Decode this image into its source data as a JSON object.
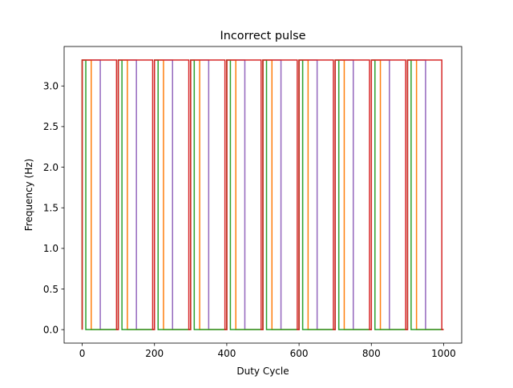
{
  "chart_data": {
    "type": "line",
    "title": "Incorrect pulse",
    "xlabel": "Duty Cycle",
    "ylabel": "Frequency (Hz)",
    "xlim": [
      -50,
      1050
    ],
    "ylim": [
      -0.166,
      3.486
    ],
    "xticks": [
      0,
      200,
      400,
      600,
      800,
      1000
    ],
    "xtick_labels": [
      "0",
      "200",
      "400",
      "600",
      "800",
      "1000"
    ],
    "yticks": [
      0.0,
      0.5,
      1.0,
      1.5,
      2.0,
      2.5,
      3.0
    ],
    "ytick_labels": [
      "0.0",
      "0.5",
      "1.0",
      "1.5",
      "2.0",
      "2.5",
      "3.0"
    ],
    "grid": false,
    "legend": "none",
    "high": 3.32,
    "low": 0.0,
    "period": 100,
    "x_range": [
      0,
      1000
    ],
    "series": [
      {
        "color": "#9467bd",
        "duty": 0.5,
        "phase": 0
      },
      {
        "color": "#ff7f0e",
        "duty": 0.25,
        "phase": 0
      },
      {
        "color": "#2ca02c",
        "duty": 0.1,
        "phase": 0
      },
      {
        "color": "#d62728",
        "duty": 0.95,
        "phase": 0
      }
    ]
  }
}
